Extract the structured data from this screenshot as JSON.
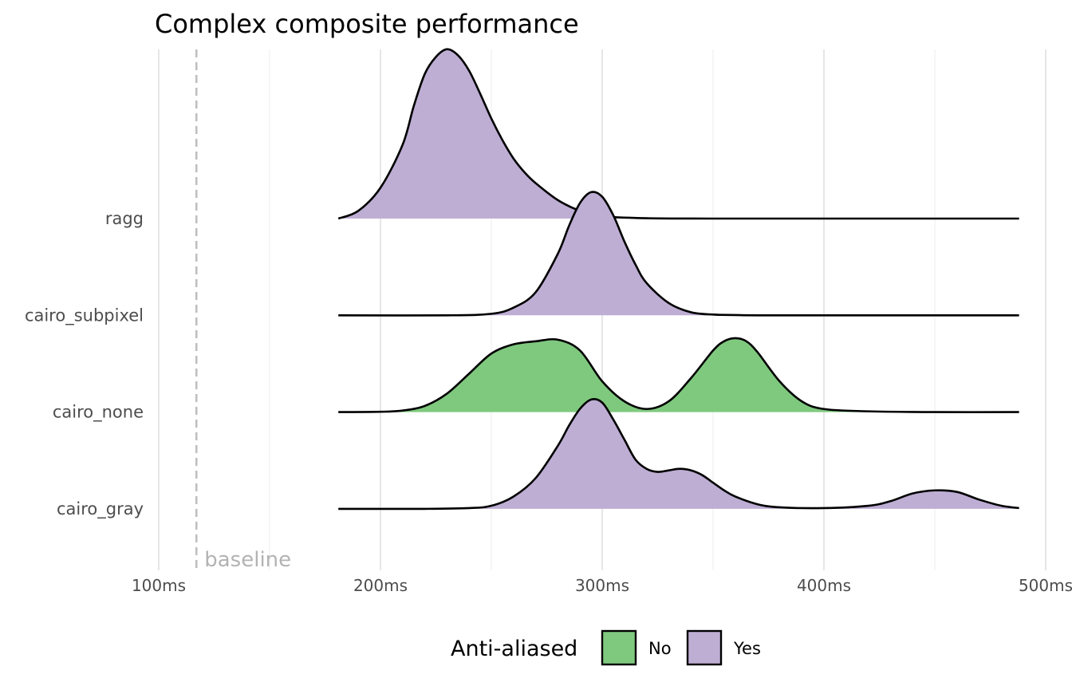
{
  "chart_data": {
    "type": "area",
    "subtype": "ridgeline",
    "title": "Complex composite performance",
    "xlabel": "",
    "ylabel": "",
    "xlim": [
      100,
      500
    ],
    "x_ticks": [
      100,
      200,
      300,
      400,
      500
    ],
    "x_tick_labels": [
      "100ms",
      "200ms",
      "300ms",
      "400ms",
      "500ms"
    ],
    "grid": true,
    "reference_line": {
      "x": 117,
      "style": "dashed",
      "label": "baseline"
    },
    "legend": {
      "title": "Anti-aliased",
      "position": "bottom",
      "entries": [
        {
          "label": "No",
          "color": "#7fc97f"
        },
        {
          "label": "Yes",
          "color": "#beaed4"
        }
      ]
    },
    "fill_by_anti_aliased": {
      "No": "#7fc97f",
      "Yes": "#beaed4"
    },
    "series": [
      {
        "name": "cairo_gray",
        "anti_aliased": "Yes",
        "x": [
          181,
          200,
          220,
          240,
          250,
          260,
          270,
          280,
          285,
          290,
          295,
          300,
          305,
          310,
          315,
          320,
          325,
          330,
          335,
          340,
          345,
          350,
          355,
          360,
          370,
          380,
          400,
          420,
          430,
          440,
          450,
          460,
          470,
          480,
          488
        ],
        "density": [
          0,
          0,
          0,
          0.005,
          0.02,
          0.08,
          0.2,
          0.41,
          0.54,
          0.65,
          0.71,
          0.69,
          0.58,
          0.45,
          0.32,
          0.26,
          0.24,
          0.25,
          0.26,
          0.25,
          0.22,
          0.17,
          0.12,
          0.08,
          0.03,
          0.01,
          0.005,
          0.02,
          0.05,
          0.1,
          0.12,
          0.11,
          0.06,
          0.02,
          0.005
        ]
      },
      {
        "name": "cairo_none",
        "anti_aliased": "No",
        "x": [
          181,
          200,
          210,
          220,
          230,
          240,
          250,
          260,
          270,
          280,
          290,
          300,
          310,
          320,
          330,
          340,
          350,
          355,
          360,
          365,
          370,
          380,
          390,
          400,
          420,
          450,
          488
        ],
        "density": [
          0,
          0.002,
          0.01,
          0.04,
          0.12,
          0.25,
          0.38,
          0.44,
          0.46,
          0.47,
          0.4,
          0.2,
          0.07,
          0.02,
          0.07,
          0.22,
          0.4,
          0.46,
          0.48,
          0.46,
          0.39,
          0.2,
          0.07,
          0.02,
          0.005,
          0,
          0
        ]
      },
      {
        "name": "cairo_subpixel",
        "anti_aliased": "Yes",
        "x": [
          181,
          230,
          250,
          260,
          270,
          280,
          285,
          290,
          295,
          300,
          305,
          310,
          315,
          320,
          330,
          340,
          350,
          360,
          380,
          488
        ],
        "density": [
          0,
          0,
          0.01,
          0.05,
          0.15,
          0.4,
          0.58,
          0.73,
          0.8,
          0.77,
          0.65,
          0.48,
          0.33,
          0.21,
          0.08,
          0.02,
          0.005,
          0.002,
          0,
          0
        ]
      },
      {
        "name": "ragg",
        "anti_aliased": "Yes",
        "x": [
          181,
          190,
          200,
          210,
          215,
          220,
          225,
          230,
          235,
          240,
          245,
          250,
          255,
          260,
          265,
          270,
          280,
          290,
          300,
          320,
          350,
          400,
          488
        ],
        "density": [
          0,
          0.05,
          0.2,
          0.48,
          0.73,
          0.94,
          1.05,
          1.1,
          1.06,
          0.96,
          0.81,
          0.65,
          0.51,
          0.39,
          0.3,
          0.23,
          0.12,
          0.05,
          0.015,
          0.002,
          0,
          0,
          0
        ]
      }
    ]
  }
}
